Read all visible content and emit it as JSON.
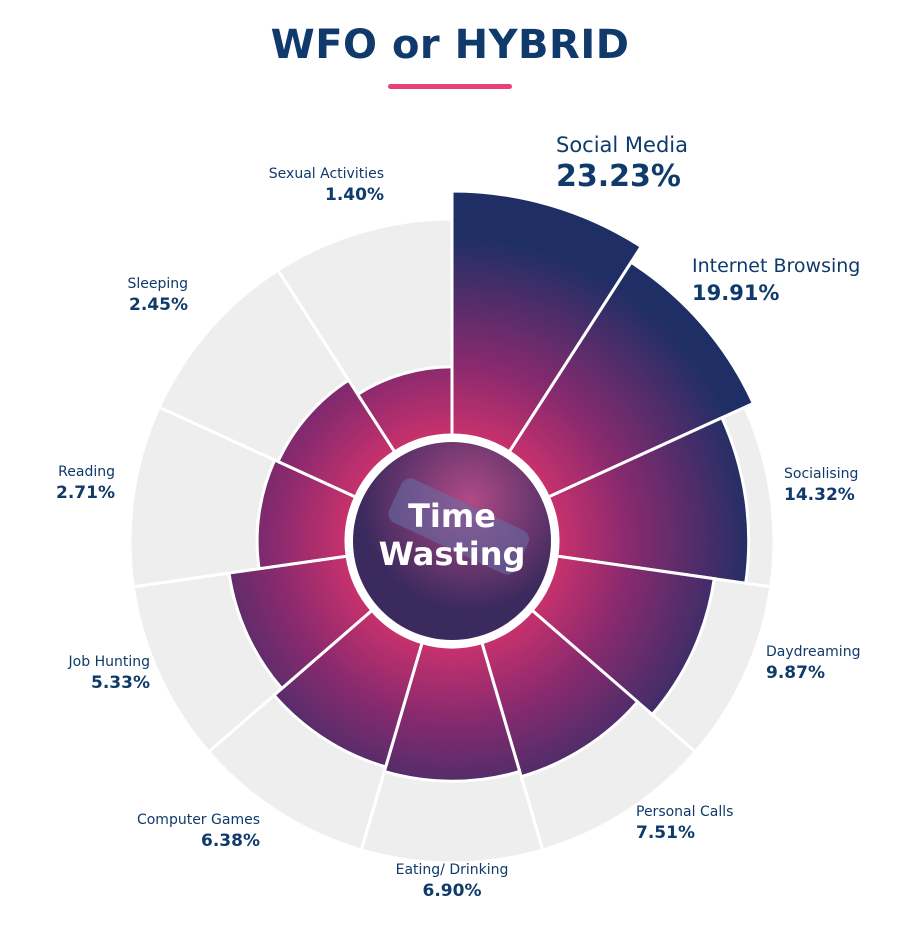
{
  "title": "WFO or HYBRID",
  "colors": {
    "title": "#0f3a6b",
    "underline": "#e8417a",
    "background_sector": "#eeeeef",
    "gradient_inner": "#d6336c",
    "gradient_mid": "#8a2a6e",
    "gradient_outer": "#1f2f66",
    "center_overlay": "#4a2a6a"
  },
  "chart_data": {
    "type": "polar-area",
    "center_label": [
      "Time",
      "Wasting"
    ],
    "categories": [
      "Social Media",
      "Internet Browsing",
      "Socialising",
      "Daydreaming",
      "Personal Calls",
      "Eating/ Drinking",
      "Computer Games",
      "Job Hunting",
      "Reading",
      "Sleeping",
      "Sexual Activities"
    ],
    "values": [
      23.23,
      19.91,
      14.32,
      9.87,
      7.51,
      6.9,
      6.38,
      5.33,
      2.71,
      2.45,
      1.4
    ],
    "value_labels": [
      "23.23%",
      "19.91%",
      "14.32%",
      "9.87%",
      "7.51%",
      "6.90%",
      "6.38%",
      "5.33%",
      "2.71%",
      "2.45%",
      "1.40%"
    ],
    "ylim": [
      0,
      23.23
    ]
  }
}
